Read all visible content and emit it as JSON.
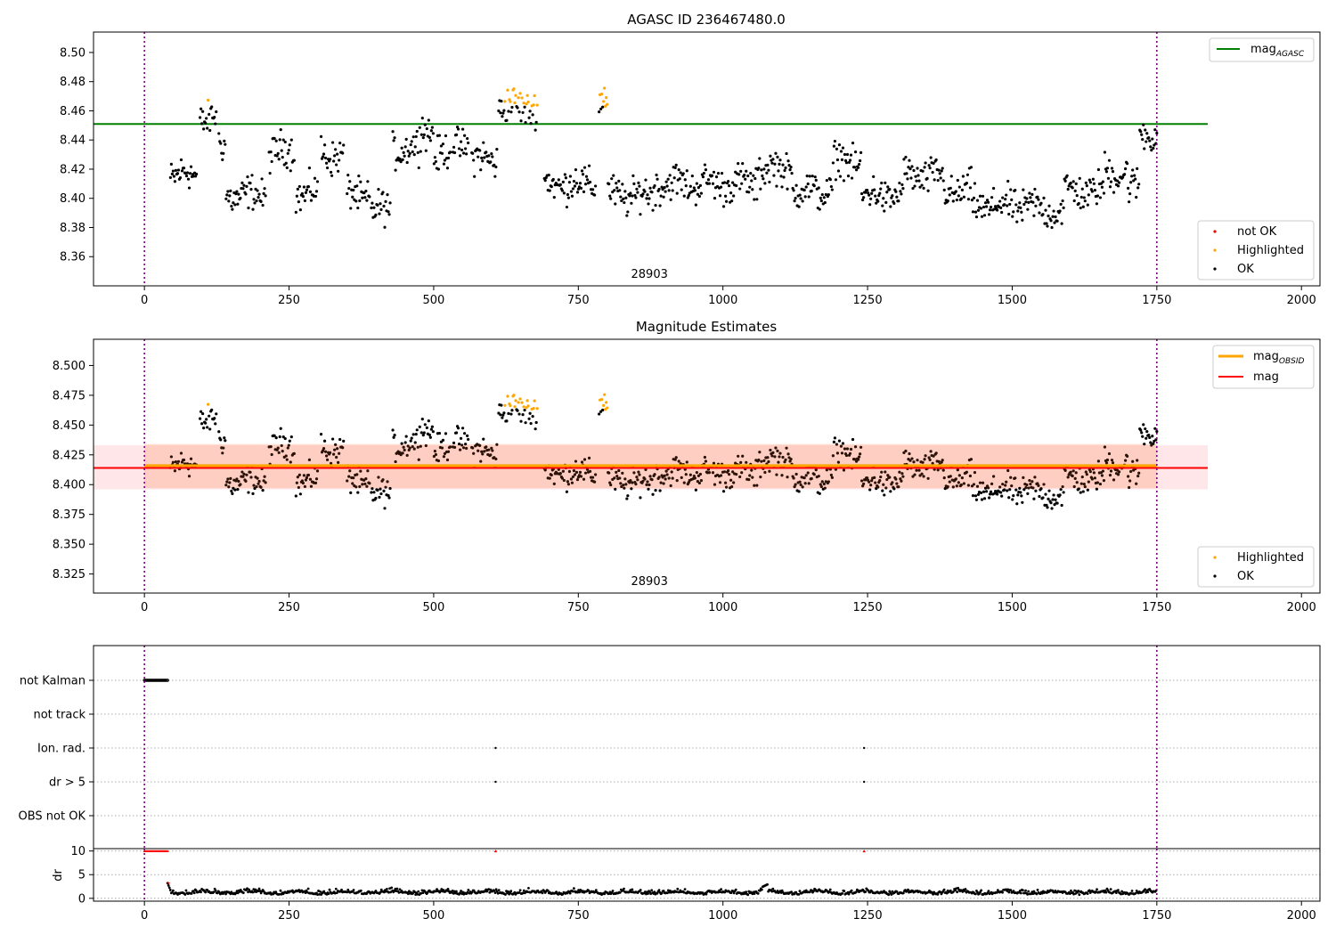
{
  "chart_data": [
    {
      "type": "scatter",
      "title": "AGASC ID 236467480.0",
      "xlim": [
        -88,
        2032
      ],
      "ylim": [
        8.34,
        8.514
      ],
      "xticks": [
        "0",
        "250",
        "500",
        "750",
        "1000",
        "1250",
        "1500",
        "1750",
        "2000"
      ],
      "xtick_values": [
        0,
        250,
        500,
        750,
        1000,
        1250,
        1500,
        1750,
        2000
      ],
      "yticks": [
        "8.36",
        "8.38",
        "8.40",
        "8.42",
        "8.44",
        "8.46",
        "8.48",
        "8.50"
      ],
      "ytick_values": [
        8.36,
        8.38,
        8.4,
        8.42,
        8.44,
        8.46,
        8.48,
        8.5
      ],
      "annotation": "28903",
      "annotation_x": 873,
      "vlines": [
        0,
        1750
      ],
      "hline": {
        "name": "mag_AGASC",
        "value": 8.451,
        "x": [
          -88,
          1838
        ],
        "color": "#008000"
      },
      "legend_lines": [
        {
          "label": "mag",
          "sub": "AGASC",
          "color": "#008000"
        }
      ],
      "legend_points": [
        {
          "label": "not OK",
          "color": "#ff0000"
        },
        {
          "label": "Highlighted",
          "color": "#ffa500"
        },
        {
          "label": "OK",
          "color": "#000000"
        }
      ]
    },
    {
      "type": "scatter",
      "title": "Magnitude Estimates",
      "xlim": [
        -88,
        2032
      ],
      "ylim": [
        8.309,
        8.522
      ],
      "xticks": [
        "0",
        "250",
        "500",
        "750",
        "1000",
        "1250",
        "1500",
        "1750",
        "2000"
      ],
      "xtick_values": [
        0,
        250,
        500,
        750,
        1000,
        1250,
        1500,
        1750,
        2000
      ],
      "yticks": [
        "8.325",
        "8.350",
        "8.375",
        "8.400",
        "8.425",
        "8.450",
        "8.475",
        "8.500"
      ],
      "ytick_values": [
        8.325,
        8.35,
        8.375,
        8.4,
        8.425,
        8.45,
        8.475,
        8.5
      ],
      "annotation": "28903",
      "annotation_x": 873,
      "vlines": [
        0,
        1750
      ],
      "bands": [
        {
          "x": [
            -88,
            1838
          ],
          "y": [
            8.396,
            8.433
          ],
          "color": "#ffb6c1",
          "opacity": 0.35
        },
        {
          "x": [
            0,
            1750
          ],
          "y": [
            8.397,
            8.434
          ],
          "color": "#ffa07a",
          "opacity": 0.35
        }
      ],
      "lines": [
        {
          "name": "mag_OBSID",
          "value": 8.416,
          "x": [
            0,
            1750
          ],
          "color": "#ffa500",
          "width": 3
        },
        {
          "name": "mag",
          "value": 8.414,
          "x": [
            -88,
            1838
          ],
          "color": "#ff0000",
          "width": 2
        }
      ],
      "legend_lines": [
        {
          "label": "mag",
          "sub": "OBSID",
          "color": "#ffa500"
        },
        {
          "label": "mag",
          "sub": "",
          "color": "#ff0000"
        }
      ],
      "legend_points": [
        {
          "label": "Highlighted",
          "color": "#ffa500"
        },
        {
          "label": "OK",
          "color": "#000000"
        }
      ]
    },
    {
      "type": "scatter",
      "title": "",
      "xlim": [
        -88,
        2032
      ],
      "categories": [
        "not Kalman",
        "not track",
        "Ion. rad.",
        "dr > 5",
        "OBS not OK"
      ],
      "flag_points": [
        {
          "category": "not Kalman",
          "x_from": 0,
          "x_to": 41,
          "step": 1.6
        },
        {
          "category": "Ion. rad.",
          "x": [
            607,
            1244
          ]
        },
        {
          "category": "dr > 5",
          "x": [
            607,
            1244
          ]
        }
      ],
      "vlines": [
        0,
        1750
      ]
    },
    {
      "type": "scatter",
      "title": "",
      "ylabel": "dr",
      "xlim": [
        -88,
        2032
      ],
      "ylim": [
        -0.6,
        10.5
      ],
      "xticks": [
        "0",
        "250",
        "500",
        "750",
        "1000",
        "1250",
        "1500",
        "1750",
        "2000"
      ],
      "xtick_values": [
        0,
        250,
        500,
        750,
        1000,
        1250,
        1500,
        1750,
        2000
      ],
      "yticks": [
        "0",
        "5",
        "10"
      ],
      "ytick_values": [
        0,
        5,
        10
      ],
      "clipped_points": [
        {
          "x_from": 0,
          "x_to": 41,
          "step": 1.6,
          "y": 10,
          "color": "#ff0000"
        },
        {
          "x": [
            607,
            1244
          ],
          "y": 10,
          "color": "#ff0000"
        }
      ],
      "vlines": [
        0,
        1750
      ]
    }
  ]
}
